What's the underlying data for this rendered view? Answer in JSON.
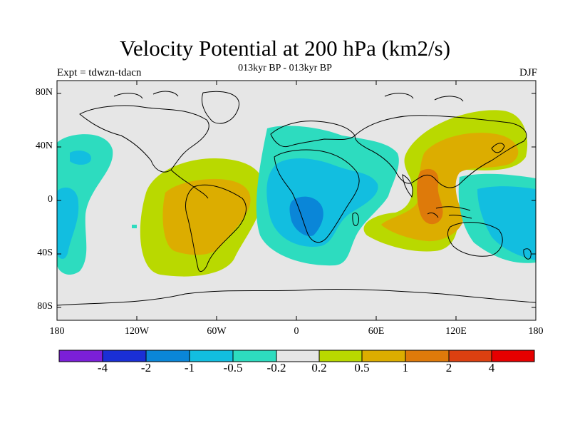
{
  "header": {
    "title": "Velocity Potential at 200 hPa (km2/s)",
    "subtitle": "013kyr BP - 013kyr BP",
    "experiment": "Expt = tdwzn-tdacn",
    "season": "DJF"
  },
  "map": {
    "lat_ticks": [
      "80N",
      "40N",
      "0",
      "40S",
      "80S"
    ],
    "lon_ticks": [
      "180",
      "120W",
      "60W",
      "0",
      "60E",
      "120E",
      "180"
    ],
    "colors": {
      "background": "#e6e6e6",
      "land_outline": "#000000",
      "cyan_light": "#2ddcbf",
      "cyan": "#12bee0",
      "blue": "#0a86d8",
      "yellow_green": "#b9d900",
      "orange_yellow": "#dcad00",
      "orange": "#de7a0a"
    }
  },
  "colorbar": {
    "colors": [
      "#7b1fd8",
      "#1a2fd6",
      "#0a86d8",
      "#12bee0",
      "#2ddcbf",
      "#e6e6e6",
      "#b9d900",
      "#dcad00",
      "#de7a0a",
      "#dc4010",
      "#e60000"
    ],
    "labels": [
      "-4",
      "-2",
      "-1",
      "-0.5",
      "-0.2",
      "0.2",
      "0.5",
      "1",
      "2",
      "4"
    ]
  }
}
